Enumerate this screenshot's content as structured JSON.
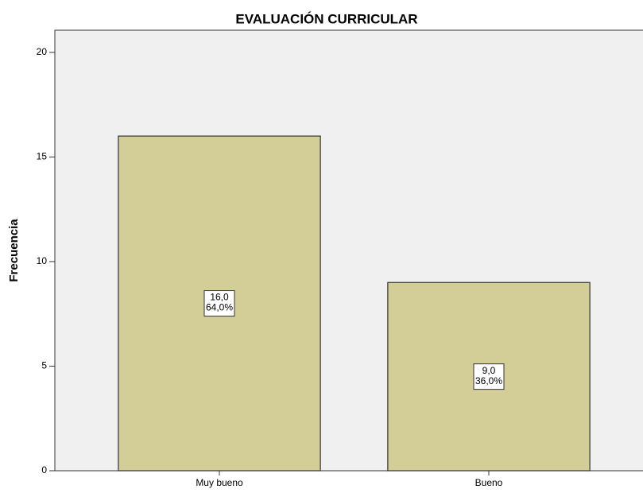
{
  "chart_data": {
    "type": "bar",
    "title": "EVALUACIÓN CURRICULAR",
    "ylabel": "Frecuencia",
    "categories": [
      "Muy bueno",
      "Bueno"
    ],
    "values": [
      16,
      9
    ],
    "value_labels": [
      "16,0",
      "9,0"
    ],
    "percentages": [
      64,
      36
    ],
    "percentage_labels": [
      "64,0%",
      "36,0%"
    ],
    "color": "#d3ce98",
    "ylim": [
      0,
      21.06
    ],
    "yticks": [
      0,
      5,
      10,
      15,
      20
    ]
  }
}
